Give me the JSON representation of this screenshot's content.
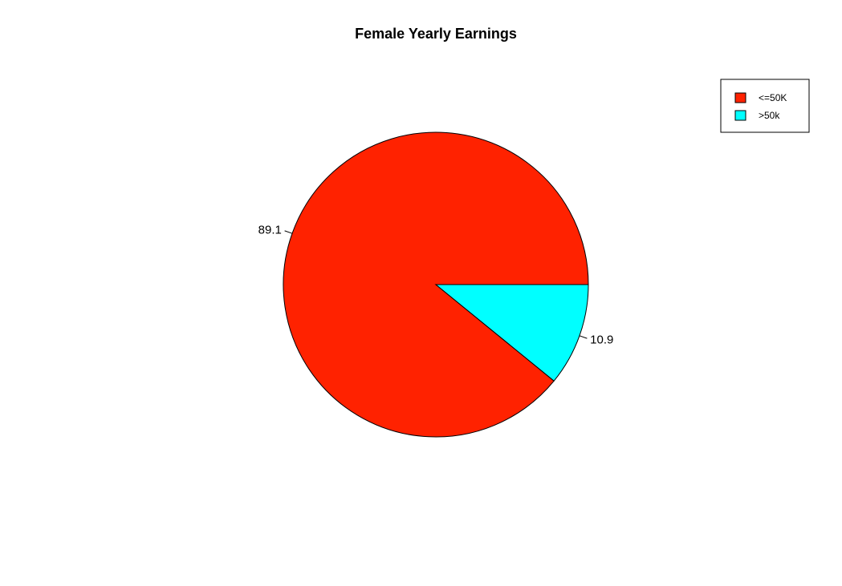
{
  "chart_data": {
    "type": "pie",
    "title": "Female Yearly Earnings",
    "categories": [
      "<=50K",
      ">50k"
    ],
    "values": [
      89.1,
      10.9
    ],
    "labels": [
      "89.1",
      "10.9"
    ],
    "colors": [
      "#ff2200",
      "#00ffff"
    ],
    "legend": {
      "placement": "top-right",
      "entries": [
        "<=50K",
        ">50k"
      ]
    },
    "start_angle_deg": 0,
    "direction": "counterclockwise"
  }
}
